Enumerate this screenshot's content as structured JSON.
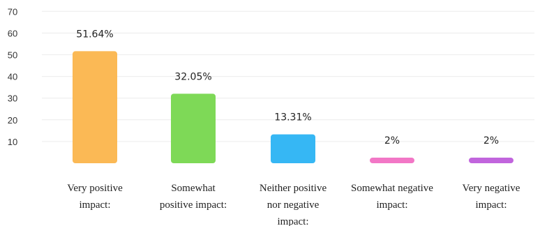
{
  "chart_data": {
    "type": "bar",
    "title": "",
    "xlabel": "",
    "ylabel": "",
    "ylim": [
      0,
      70
    ],
    "yticks": [
      10,
      20,
      30,
      40,
      50,
      60,
      70
    ],
    "grid": true,
    "legend": "none",
    "categories": [
      "Very positive impact:",
      "Somewhat positive impact:",
      "Neither positive nor negative impact:",
      "Somewhat negative impact:",
      "Very negative impact:"
    ],
    "category_lines": [
      [
        "Very positive",
        "impact:"
      ],
      [
        "Somewhat",
        "positive impact:"
      ],
      [
        "Neither positive",
        "nor negative",
        "impact:"
      ],
      [
        "Somewhat negative",
        "impact:"
      ],
      [
        "Very negative",
        "impact:"
      ]
    ],
    "values": [
      51.64,
      32.05,
      13.31,
      2,
      2
    ],
    "value_labels": [
      "51.64%",
      "32.05%",
      "13.31%",
      "2%",
      "2%"
    ],
    "colors": [
      "#fbb955",
      "#7ed957",
      "#36b7f4",
      "#f277c6",
      "#c165dd"
    ]
  }
}
